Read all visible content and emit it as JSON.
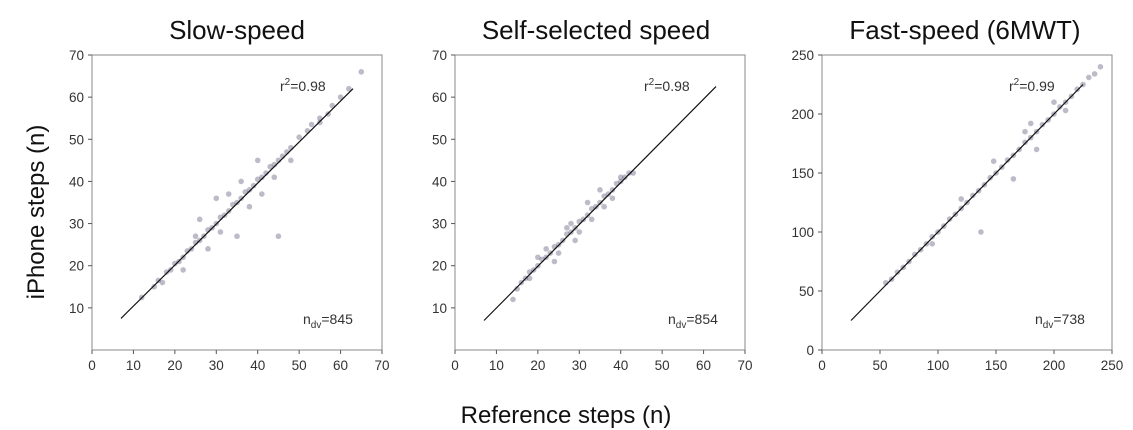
{
  "figure": {
    "ylabel": "iPhone steps (n)",
    "xlabel": "Reference steps (n)"
  },
  "chart_data": [
    {
      "type": "scatter",
      "title": "Slow-speed",
      "xlim": [
        0,
        70
      ],
      "ylim": [
        0,
        70
      ],
      "xticks": [
        0,
        10,
        20,
        30,
        40,
        50,
        60,
        70
      ],
      "yticks": [
        10,
        20,
        30,
        40,
        50,
        60,
        70
      ],
      "grid": false,
      "fit_line": {
        "x": [
          7,
          63
        ],
        "y": [
          7.5,
          62
        ]
      },
      "r2_label": "=0.98",
      "n_label": "=845",
      "n_total": 845,
      "sample_points": [
        [
          12,
          12.5
        ],
        [
          15,
          15
        ],
        [
          16,
          16.5
        ],
        [
          17,
          16
        ],
        [
          18,
          18.5
        ],
        [
          19,
          19
        ],
        [
          20,
          20.5
        ],
        [
          21,
          21
        ],
        [
          22,
          22
        ],
        [
          23,
          23.5
        ],
        [
          24,
          24
        ],
        [
          25,
          25.5
        ],
        [
          26,
          26
        ],
        [
          27,
          27
        ],
        [
          28,
          28.5
        ],
        [
          29,
          29
        ],
        [
          30,
          30
        ],
        [
          31,
          31.5
        ],
        [
          32,
          32
        ],
        [
          33,
          33
        ],
        [
          34,
          34.5
        ],
        [
          35,
          35
        ],
        [
          36,
          36
        ],
        [
          37,
          37.5
        ],
        [
          38,
          38
        ],
        [
          39,
          39
        ],
        [
          40,
          40.5
        ],
        [
          41,
          41
        ],
        [
          42,
          42
        ],
        [
          43,
          43.5
        ],
        [
          44,
          44
        ],
        [
          45,
          45
        ],
        [
          46,
          46
        ],
        [
          47,
          47
        ],
        [
          48,
          48
        ],
        [
          50,
          50.5
        ],
        [
          52,
          52
        ],
        [
          53,
          53.5
        ],
        [
          55,
          55
        ],
        [
          58,
          58
        ],
        [
          60,
          60
        ],
        [
          62,
          62
        ],
        [
          65,
          66
        ],
        [
          45,
          27
        ],
        [
          40,
          45
        ],
        [
          38,
          34
        ],
        [
          30,
          36
        ],
        [
          35,
          27
        ],
        [
          25,
          27
        ],
        [
          22,
          19
        ],
        [
          28,
          24
        ],
        [
          33,
          37
        ],
        [
          26,
          31
        ],
        [
          31,
          28
        ],
        [
          36,
          40
        ],
        [
          41,
          37
        ],
        [
          48,
          45
        ],
        [
          55,
          54
        ],
        [
          57,
          56
        ],
        [
          44,
          41
        ]
      ]
    },
    {
      "type": "scatter",
      "title": "Self-selected speed",
      "xlim": [
        0,
        70
      ],
      "ylim": [
        0,
        70
      ],
      "xticks": [
        0,
        10,
        20,
        30,
        40,
        50,
        60,
        70
      ],
      "yticks": [
        10,
        20,
        30,
        40,
        50,
        60,
        70
      ],
      "grid": false,
      "fit_line": {
        "x": [
          7,
          63
        ],
        "y": [
          7,
          62.5
        ]
      },
      "r2_label": "=0.98",
      "n_label": "=854",
      "n_total": 854,
      "sample_points": [
        [
          14,
          12
        ],
        [
          15,
          14.5
        ],
        [
          16,
          16
        ],
        [
          17,
          17
        ],
        [
          18,
          18.5
        ],
        [
          19,
          19
        ],
        [
          20,
          20
        ],
        [
          21,
          21.5
        ],
        [
          22,
          22
        ],
        [
          23,
          23
        ],
        [
          24,
          24.5
        ],
        [
          25,
          25
        ],
        [
          26,
          26
        ],
        [
          27,
          27.5
        ],
        [
          28,
          28
        ],
        [
          29,
          29
        ],
        [
          30,
          30.5
        ],
        [
          31,
          31
        ],
        [
          32,
          32
        ],
        [
          33,
          33.5
        ],
        [
          34,
          34
        ],
        [
          35,
          35
        ],
        [
          36,
          36.5
        ],
        [
          37,
          37
        ],
        [
          38,
          38
        ],
        [
          39,
          39.5
        ],
        [
          40,
          40
        ],
        [
          41,
          41
        ],
        [
          42,
          42
        ],
        [
          43,
          42
        ],
        [
          40,
          41
        ],
        [
          35,
          38
        ],
        [
          20,
          22
        ],
        [
          18,
          17
        ],
        [
          25,
          23
        ],
        [
          28,
          30
        ],
        [
          30,
          28
        ],
        [
          33,
          31
        ],
        [
          36,
          34
        ],
        [
          22,
          24
        ],
        [
          24,
          21
        ],
        [
          27,
          29
        ],
        [
          29,
          26
        ],
        [
          32,
          35
        ],
        [
          38,
          36
        ]
      ]
    },
    {
      "type": "scatter",
      "title": "Fast-speed (6MWT)",
      "xlim": [
        0,
        250
      ],
      "ylim": [
        0,
        250
      ],
      "xticks": [
        0,
        50,
        100,
        150,
        200,
        250
      ],
      "yticks": [
        0,
        50,
        100,
        150,
        200,
        250
      ],
      "grid": false,
      "fit_line": {
        "x": [
          25,
          225
        ],
        "y": [
          25,
          225
        ]
      },
      "r2_label": "=0.99",
      "n_label": "=738",
      "n_total": 738,
      "sample_points": [
        [
          55,
          57
        ],
        [
          60,
          60
        ],
        [
          65,
          66
        ],
        [
          70,
          70
        ],
        [
          75,
          75
        ],
        [
          80,
          81
        ],
        [
          85,
          85
        ],
        [
          90,
          90
        ],
        [
          95,
          96
        ],
        [
          100,
          100
        ],
        [
          105,
          105
        ],
        [
          110,
          111
        ],
        [
          115,
          115
        ],
        [
          120,
          120
        ],
        [
          125,
          125
        ],
        [
          130,
          131
        ],
        [
          135,
          135
        ],
        [
          140,
          140
        ],
        [
          145,
          146
        ],
        [
          150,
          150
        ],
        [
          155,
          155
        ],
        [
          160,
          161
        ],
        [
          165,
          165
        ],
        [
          170,
          170
        ],
        [
          175,
          176
        ],
        [
          180,
          180
        ],
        [
          185,
          185
        ],
        [
          190,
          191
        ],
        [
          195,
          195
        ],
        [
          200,
          200
        ],
        [
          205,
          206
        ],
        [
          210,
          210
        ],
        [
          215,
          215
        ],
        [
          220,
          221
        ],
        [
          225,
          225
        ],
        [
          230,
          231
        ],
        [
          235,
          234
        ],
        [
          240,
          240
        ],
        [
          137,
          100
        ],
        [
          165,
          145
        ],
        [
          185,
          170
        ],
        [
          175,
          185
        ],
        [
          148,
          160
        ],
        [
          120,
          128
        ],
        [
          95,
          90
        ],
        [
          200,
          210
        ],
        [
          210,
          203
        ],
        [
          180,
          192
        ]
      ]
    }
  ]
}
